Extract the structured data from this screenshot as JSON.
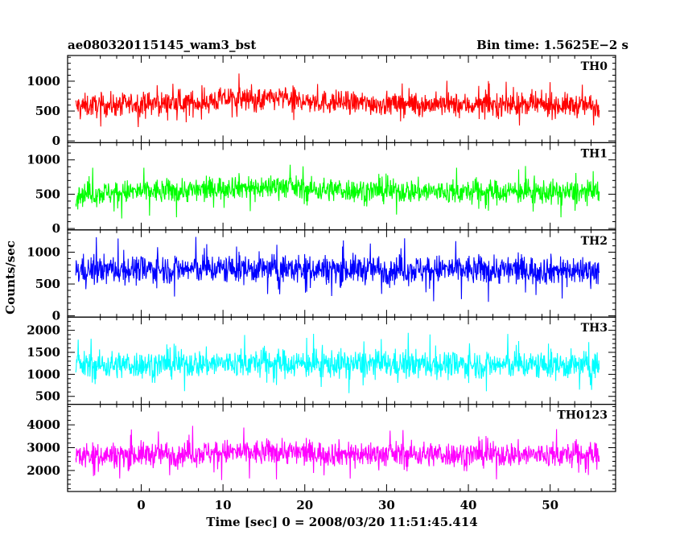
{
  "chart_data": {
    "type": "line",
    "title": "ae080320115145_wam3_bst",
    "subtitle": "Bin time: 1.5625E−2 s",
    "xlabel": "Time [sec] 0 = 2008/03/20 11:51:45.414",
    "ylabel": "Counts/sec",
    "xlim": [
      -9,
      58
    ],
    "x_ticks": [
      0,
      10,
      20,
      30,
      40,
      50
    ],
    "x_tick_labels": [
      "0",
      "10",
      "20",
      "30",
      "40",
      "50"
    ],
    "data_x_range": [
      -8,
      56
    ],
    "grid": false,
    "panels": [
      {
        "name": "TH0",
        "color": "#ff0000",
        "ylim": [
          -30,
          1430
        ],
        "y_ticks": [
          0,
          500,
          1000
        ],
        "y_tick_labels": [
          "0",
          "500",
          "1000"
        ],
        "mean_envelope": [
          [
            -8,
            580
          ],
          [
            -4,
            600
          ],
          [
            0,
            620
          ],
          [
            4,
            630
          ],
          [
            8,
            650
          ],
          [
            11,
            720
          ],
          [
            14,
            680
          ],
          [
            17,
            720
          ],
          [
            20,
            660
          ],
          [
            25,
            640
          ],
          [
            30,
            620
          ],
          [
            35,
            610
          ],
          [
            40,
            600
          ],
          [
            45,
            610
          ],
          [
            50,
            600
          ],
          [
            56,
            590
          ]
        ],
        "spread": 370
      },
      {
        "name": "TH1",
        "color": "#00ff00",
        "ylim": [
          -20,
          1250
        ],
        "y_ticks": [
          0,
          500,
          1000
        ],
        "y_tick_labels": [
          "0",
          "500",
          "1000"
        ],
        "mean_envelope": [
          [
            -8,
            500
          ],
          [
            -4,
            520
          ],
          [
            0,
            540
          ],
          [
            4,
            550
          ],
          [
            8,
            560
          ],
          [
            11,
            620
          ],
          [
            14,
            590
          ],
          [
            17,
            630
          ],
          [
            20,
            570
          ],
          [
            25,
            560
          ],
          [
            30,
            545
          ],
          [
            35,
            540
          ],
          [
            40,
            530
          ],
          [
            45,
            540
          ],
          [
            50,
            530
          ],
          [
            56,
            520
          ]
        ],
        "spread": 330
      },
      {
        "name": "TH2",
        "color": "#0000ff",
        "ylim": [
          -20,
          1350
        ],
        "y_ticks": [
          0,
          500,
          1000
        ],
        "y_tick_labels": [
          "0",
          "500",
          "1000"
        ],
        "mean_envelope": [
          [
            -8,
            720
          ],
          [
            0,
            730
          ],
          [
            10,
            740
          ],
          [
            20,
            735
          ],
          [
            30,
            730
          ],
          [
            40,
            725
          ],
          [
            50,
            720
          ],
          [
            56,
            715
          ]
        ],
        "spread": 430
      },
      {
        "name": "TH3",
        "color": "#00ffff",
        "ylim": [
          320,
          2300
        ],
        "y_ticks": [
          500,
          1000,
          1500,
          2000
        ],
        "y_tick_labels": [
          "500",
          "1000",
          "1500",
          "2000"
        ],
        "mean_envelope": [
          [
            -8,
            1200
          ],
          [
            0,
            1220
          ],
          [
            10,
            1250
          ],
          [
            17,
            1260
          ],
          [
            20,
            1240
          ],
          [
            30,
            1230
          ],
          [
            40,
            1220
          ],
          [
            50,
            1210
          ],
          [
            56,
            1200
          ]
        ],
        "spread": 600
      },
      {
        "name": "TH0123",
        "color": "#ff00ff",
        "ylim": [
          1080,
          4900
        ],
        "y_ticks": [
          2000,
          3000,
          4000
        ],
        "y_tick_labels": [
          "2000",
          "3000",
          "4000"
        ],
        "mean_envelope": [
          [
            -8,
            2650
          ],
          [
            0,
            2700
          ],
          [
            10,
            2800
          ],
          [
            14,
            2780
          ],
          [
            17,
            2850
          ],
          [
            20,
            2760
          ],
          [
            30,
            2720
          ],
          [
            40,
            2700
          ],
          [
            50,
            2690
          ],
          [
            56,
            2680
          ]
        ],
        "spread": 1050
      }
    ]
  }
}
